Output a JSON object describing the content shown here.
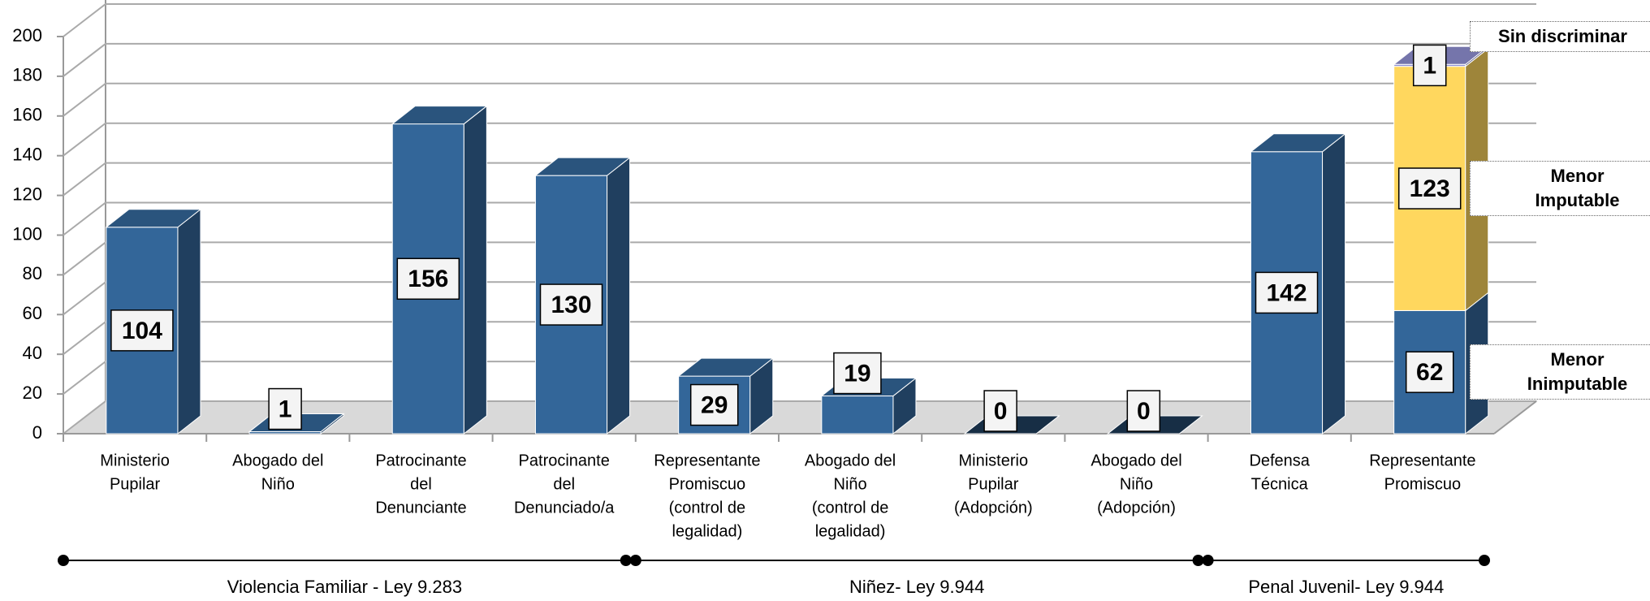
{
  "chart_data": {
    "type": "bar3d-stacked",
    "categories": [
      [
        "Ministerio",
        "Pupilar"
      ],
      [
        "Abogado del",
        "Niño"
      ],
      [
        "Patrocinante",
        "del",
        "Denunciante"
      ],
      [
        "Patrocinante",
        "del",
        "Denunciado/a"
      ],
      [
        "Representante",
        "Promiscuo",
        "(control de",
        "legalidad)"
      ],
      [
        "Abogado del",
        "Niño",
        "(control de",
        "legalidad)"
      ],
      [
        "Ministerio",
        "Pupilar",
        "(Adopción)"
      ],
      [
        "Abogado del",
        "Niño",
        "(Adopción)"
      ],
      [
        "Defensa",
        "Técnica"
      ],
      [
        "Representante",
        "Promiscuo"
      ]
    ],
    "series": [
      {
        "name": "Menor Inimputable",
        "color": "#336699",
        "values": [
          104,
          1,
          156,
          130,
          29,
          19,
          0,
          0,
          142,
          62
        ]
      },
      {
        "name": "Menor Imputable",
        "color": "#ffd75e",
        "values": [
          null,
          null,
          null,
          null,
          null,
          null,
          null,
          null,
          null,
          123
        ]
      },
      {
        "name": "Sin discriminar",
        "color": "#8f8fd0",
        "values": [
          null,
          null,
          null,
          null,
          null,
          null,
          null,
          null,
          null,
          1
        ]
      }
    ],
    "groups": [
      {
        "label": "Violencia Familiar - Ley 9.283",
        "span": 4
      },
      {
        "label": "Niñez- Ley 9.944",
        "span": 4
      },
      {
        "label": "Penal Juvenil- Ley 9.944",
        "span": 2
      }
    ],
    "ylim": [
      0,
      200
    ],
    "yticks": [
      0,
      20,
      40,
      60,
      80,
      100,
      120,
      140,
      160,
      180,
      200
    ],
    "grid": true
  }
}
